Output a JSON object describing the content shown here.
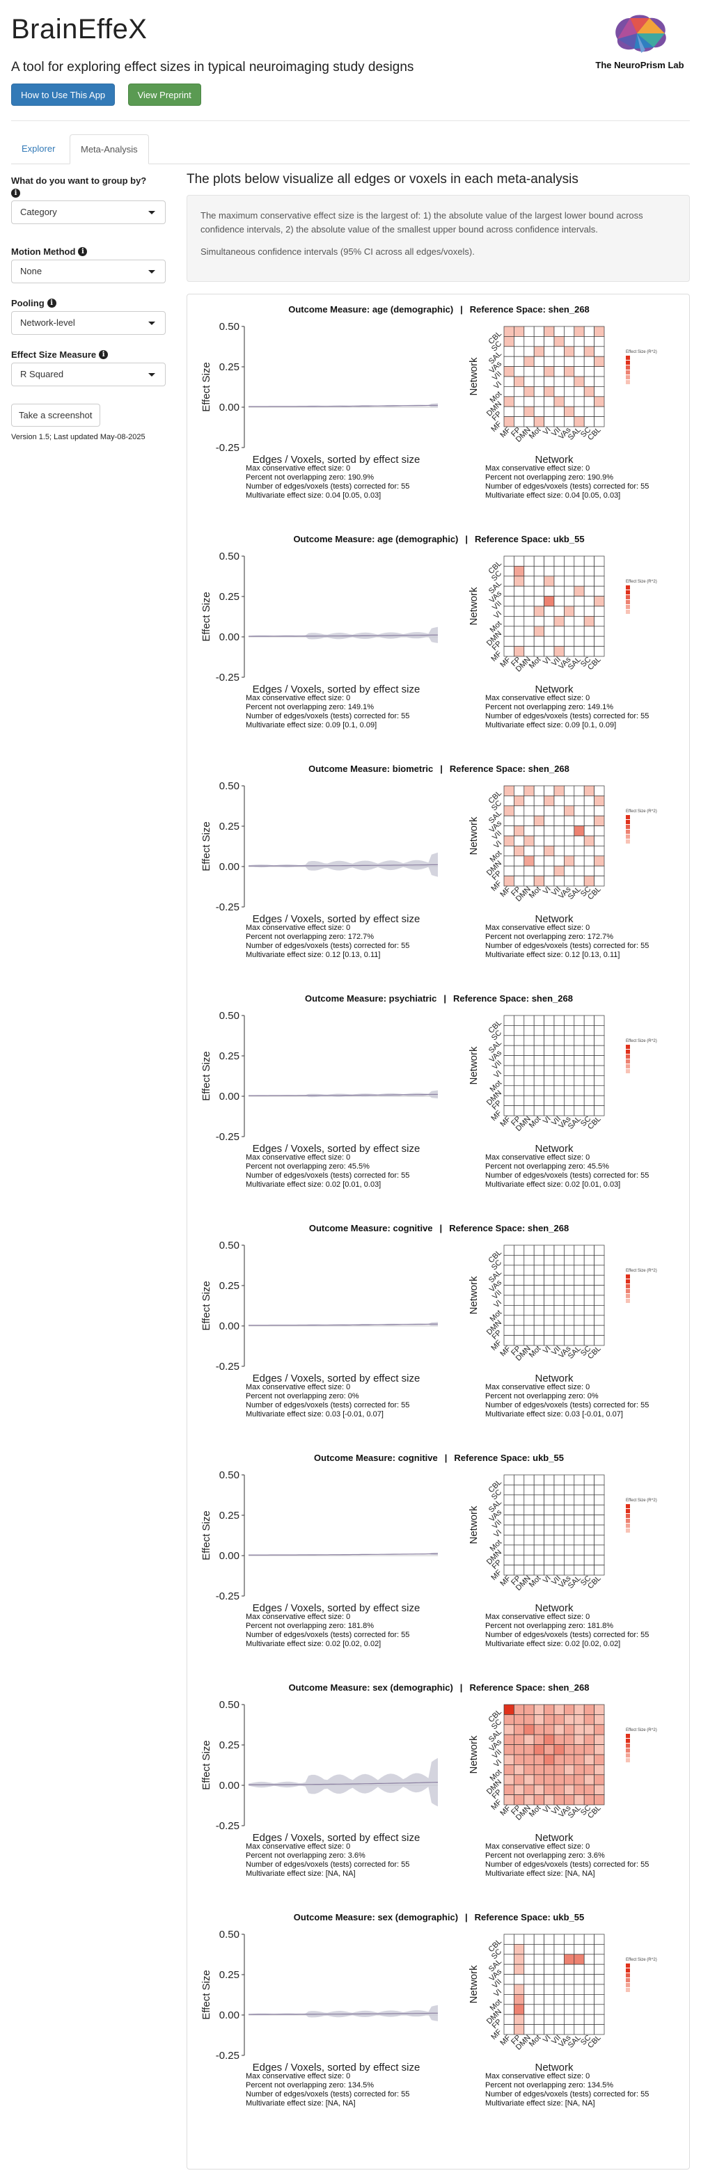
{
  "header": {
    "app_title": "BrainEffeX",
    "app_subtitle": "A tool for exploring effect sizes in typical neuroimaging study designs",
    "lab_name": "The NeuroPrism Lab"
  },
  "buttons": {
    "how_to": "How to Use This App",
    "preprint": "View Preprint",
    "screenshot": "Take a screenshot"
  },
  "tabs": {
    "explorer": "Explorer",
    "meta": "Meta-Analysis"
  },
  "sidebar": {
    "group_by_label": "What do you want to group by?",
    "group_by_value": "Category",
    "motion_label": "Motion Method",
    "motion_value": "None",
    "pooling_label": "Pooling",
    "pooling_value": "Network-level",
    "effect_label": "Effect Size Measure",
    "effect_value": "R Squared",
    "version": "Version 1.5; Last updated May-08-2025"
  },
  "main": {
    "heading": "The plots below visualize all edges or voxels in each meta-analysis",
    "desc1": "The maximum conservative effect size is the largest of: 1) the absolute value of the largest lower bound across confidence intervals, 2) the absolute value of the smallest upper bound across confidence intervals.",
    "desc2": "Simultaneous confidence intervals (95% CI across all edges/voxels)."
  },
  "plot_labels": {
    "outcome_prefix": "Outcome Measure:",
    "space_prefix": "Reference Space:",
    "separator": "|",
    "y_axis": "Effect Size",
    "x_axis": "Edges / Voxels, sorted by effect size",
    "mat_y": "Network",
    "mat_x": "Network",
    "legend_title": "Effect Size (R^2)",
    "y_ticks": [
      "0.50",
      "0.25",
      "0.00",
      "-0.25"
    ],
    "stat_max": "Max conservative effect size:",
    "stat_pct": "Percent not overlapping zero:",
    "stat_n": "Number of edges/voxels (tests) corrected for:",
    "stat_mv": "Multivariate effect size:"
  },
  "colors": {
    "heat_low": "#fde3d8",
    "heat_high": "#e0321c",
    "line": "#8a7fa0",
    "band": "#c9c9d6"
  },
  "chart_data": [
    {
      "type": "line",
      "outcome": "age (demographic)",
      "space": "shen_268",
      "max_cons": "0",
      "pct": "190.9%",
      "n": "55",
      "mv": "0.04 [0.05, 0.03]",
      "networks": [
        "MF",
        "FP",
        "DMN",
        "Mot",
        "VI",
        "VII",
        "VAs",
        "SAL",
        "SC",
        "CBL"
      ],
      "ylim": [
        -0.25,
        0.5
      ],
      "band": 0.005,
      "matrix": [
        [
          1,
          1,
          0,
          0,
          1,
          0,
          0,
          1,
          0,
          1
        ],
        [
          1,
          0,
          0,
          0,
          0,
          1,
          0,
          0,
          0,
          0
        ],
        [
          0,
          0,
          0,
          1,
          0,
          0,
          1,
          0,
          1,
          0
        ],
        [
          0,
          0,
          1,
          0,
          0,
          0,
          0,
          0,
          0,
          1
        ],
        [
          1,
          0,
          0,
          0,
          1,
          0,
          1,
          0,
          0,
          0
        ],
        [
          0,
          1,
          0,
          0,
          0,
          0,
          0,
          1,
          0,
          0
        ],
        [
          0,
          0,
          1,
          0,
          1,
          0,
          0,
          0,
          1,
          0
        ],
        [
          1,
          0,
          0,
          0,
          0,
          1,
          0,
          0,
          0,
          1
        ],
        [
          0,
          0,
          1,
          0,
          0,
          0,
          1,
          0,
          0,
          0
        ],
        [
          1,
          0,
          0,
          1,
          0,
          0,
          0,
          1,
          0,
          0
        ]
      ]
    },
    {
      "type": "line",
      "outcome": "age (demographic)",
      "space": "ukb_55",
      "max_cons": "0",
      "pct": "149.1%",
      "n": "55",
      "mv": "0.09 [0.1, 0.09]",
      "networks": [
        "MF",
        "FP",
        "DMN",
        "Mot",
        "VI",
        "VII",
        "VAs",
        "SAL",
        "SC",
        "CBL"
      ],
      "ylim": [
        -0.25,
        0.5
      ],
      "band": 0.02,
      "matrix": [
        [
          0,
          0,
          0,
          0,
          0,
          0,
          0,
          0,
          0,
          0
        ],
        [
          0,
          2,
          0,
          0,
          0,
          0,
          0,
          0,
          0,
          0
        ],
        [
          0,
          1,
          0,
          0,
          1,
          0,
          0,
          0,
          0,
          0
        ],
        [
          0,
          0,
          0,
          0,
          0,
          0,
          0,
          1,
          0,
          0
        ],
        [
          0,
          0,
          0,
          0,
          3,
          0,
          0,
          0,
          0,
          1
        ],
        [
          0,
          0,
          0,
          1,
          0,
          0,
          1,
          0,
          0,
          0
        ],
        [
          0,
          0,
          0,
          0,
          0,
          1,
          0,
          0,
          1,
          0
        ],
        [
          0,
          0,
          0,
          1,
          0,
          0,
          0,
          0,
          0,
          0
        ],
        [
          0,
          0,
          0,
          0,
          0,
          0,
          0,
          0,
          0,
          0
        ],
        [
          0,
          1,
          0,
          0,
          0,
          1,
          0,
          0,
          0,
          0
        ]
      ]
    },
    {
      "type": "line",
      "outcome": "biometric",
      "space": "shen_268",
      "max_cons": "0",
      "pct": "172.7%",
      "n": "55",
      "mv": "0.12 [0.13, 0.11]",
      "networks": [
        "MF",
        "FP",
        "DMN",
        "Mot",
        "VI",
        "VII",
        "VAs",
        "SAL",
        "SC",
        "CBL"
      ],
      "ylim": [
        -0.25,
        0.5
      ],
      "band": 0.03,
      "matrix": [
        [
          1,
          0,
          1,
          0,
          0,
          1,
          0,
          0,
          1,
          0
        ],
        [
          0,
          1,
          0,
          0,
          1,
          0,
          0,
          0,
          0,
          1
        ],
        [
          1,
          0,
          0,
          0,
          0,
          0,
          1,
          0,
          0,
          0
        ],
        [
          0,
          0,
          0,
          1,
          0,
          0,
          0,
          0,
          0,
          1
        ],
        [
          0,
          1,
          0,
          0,
          0,
          0,
          0,
          3,
          0,
          0
        ],
        [
          1,
          0,
          1,
          0,
          0,
          0,
          0,
          0,
          1,
          0
        ],
        [
          0,
          1,
          0,
          0,
          1,
          0,
          0,
          0,
          0,
          0
        ],
        [
          0,
          0,
          2,
          0,
          0,
          0,
          1,
          0,
          0,
          1
        ],
        [
          0,
          0,
          0,
          0,
          0,
          1,
          0,
          0,
          0,
          0
        ],
        [
          1,
          0,
          0,
          1,
          0,
          0,
          0,
          0,
          1,
          0
        ]
      ]
    },
    {
      "type": "line",
      "outcome": "psychiatric",
      "space": "shen_268",
      "max_cons": "0",
      "pct": "45.5%",
      "n": "55",
      "mv": "0.02 [0.01, 0.03]",
      "networks": [
        "MF",
        "FP",
        "DMN",
        "Mot",
        "VI",
        "VII",
        "VAs",
        "SAL",
        "SC",
        "CBL"
      ],
      "ylim": [
        -0.25,
        0.5
      ],
      "band": 0.01,
      "matrix": [
        [
          0,
          0,
          0,
          0,
          0,
          0,
          0,
          0,
          0,
          0
        ],
        [
          0,
          0,
          0,
          0,
          0,
          0,
          0,
          0,
          0,
          0
        ],
        [
          0,
          0,
          0,
          0,
          0,
          0,
          0,
          0,
          0,
          0
        ],
        [
          0,
          0,
          0,
          0,
          0,
          0,
          0,
          0,
          0,
          0
        ],
        [
          0,
          0,
          0,
          0,
          0,
          0,
          0,
          0,
          0,
          0
        ],
        [
          0,
          0,
          0,
          0,
          0,
          0,
          0,
          0,
          0,
          0
        ],
        [
          0,
          0,
          0,
          0,
          0,
          0,
          0,
          0,
          0,
          0
        ],
        [
          0,
          0,
          0,
          0,
          0,
          0,
          0,
          0,
          0,
          0
        ],
        [
          0,
          0,
          0,
          0,
          0,
          0,
          0,
          0,
          0,
          0
        ],
        [
          0,
          0,
          0,
          0,
          0,
          0,
          0,
          0,
          0,
          0
        ]
      ]
    },
    {
      "type": "line",
      "outcome": "cognitive",
      "space": "shen_268",
      "max_cons": "0",
      "pct": "0%",
      "n": "55",
      "mv": "0.03 [-0.01, 0.07]",
      "networks": [
        "MF",
        "FP",
        "DMN",
        "Mot",
        "VI",
        "VII",
        "VAs",
        "SAL",
        "SC",
        "CBL"
      ],
      "ylim": [
        -0.25,
        0.5
      ],
      "band": 0.005,
      "matrix": [
        [
          0,
          0,
          0,
          0,
          0,
          0,
          0,
          0,
          0,
          0
        ],
        [
          0,
          0,
          0,
          0,
          0,
          0,
          0,
          0,
          0,
          0
        ],
        [
          0,
          0,
          0,
          0,
          0,
          0,
          0,
          0,
          0,
          0
        ],
        [
          0,
          0,
          0,
          0,
          0,
          0,
          0,
          0,
          0,
          0
        ],
        [
          0,
          0,
          0,
          0,
          0,
          0,
          0,
          0,
          0,
          0
        ],
        [
          0,
          0,
          0,
          0,
          0,
          0,
          0,
          0,
          0,
          0
        ],
        [
          0,
          0,
          0,
          0,
          0,
          0,
          0,
          0,
          0,
          0
        ],
        [
          0,
          0,
          0,
          0,
          0,
          0,
          0,
          0,
          0,
          0
        ],
        [
          0,
          0,
          0,
          0,
          0,
          0,
          0,
          0,
          0,
          0
        ],
        [
          0,
          0,
          0,
          0,
          0,
          0,
          0,
          0,
          0,
          0
        ]
      ]
    },
    {
      "type": "line",
      "outcome": "cognitive",
      "space": "ukb_55",
      "max_cons": "0",
      "pct": "181.8%",
      "n": "55",
      "mv": "0.02 [0.02, 0.02]",
      "networks": [
        "MF",
        "FP",
        "DMN",
        "Mot",
        "VI",
        "VII",
        "VAs",
        "SAL",
        "SC",
        "CBL"
      ],
      "ylim": [
        -0.25,
        0.5
      ],
      "band": 0.003,
      "matrix": [
        [
          0,
          0,
          0,
          0,
          0,
          0,
          0,
          0,
          0,
          0
        ],
        [
          0,
          0,
          0,
          0,
          0,
          0,
          0,
          0,
          0,
          0
        ],
        [
          0,
          0,
          0,
          0,
          0,
          0,
          0,
          0,
          0,
          0
        ],
        [
          0,
          0,
          0,
          0,
          0,
          0,
          0,
          0,
          0,
          0
        ],
        [
          0,
          0,
          0,
          0,
          0,
          0,
          0,
          0,
          0,
          0
        ],
        [
          0,
          0,
          0,
          0,
          0,
          0,
          0,
          0,
          0,
          0
        ],
        [
          0,
          0,
          0,
          0,
          0,
          0,
          0,
          0,
          0,
          0
        ],
        [
          0,
          0,
          0,
          0,
          0,
          0,
          0,
          0,
          0,
          0
        ],
        [
          0,
          0,
          0,
          0,
          0,
          0,
          0,
          0,
          0,
          0
        ],
        [
          0,
          0,
          0,
          0,
          0,
          0,
          0,
          0,
          0,
          0
        ]
      ]
    },
    {
      "type": "line",
      "outcome": "sex (demographic)",
      "space": "shen_268",
      "max_cons": "0",
      "pct": "3.6%",
      "n": "55",
      "mv": " [NA, NA]",
      "networks": [
        "MF",
        "FP",
        "DMN",
        "Mot",
        "VI",
        "VII",
        "VAs",
        "SAL",
        "SC",
        "CBL"
      ],
      "ylim": [
        -0.25,
        0.5
      ],
      "band": 0.06,
      "matrix": [
        [
          5,
          2,
          2,
          1,
          2,
          1,
          2,
          1,
          2,
          1
        ],
        [
          2,
          2,
          2,
          1,
          2,
          2,
          1,
          1,
          2,
          1
        ],
        [
          1,
          2,
          3,
          2,
          2,
          1,
          2,
          1,
          1,
          2
        ],
        [
          2,
          2,
          1,
          2,
          3,
          2,
          2,
          1,
          2,
          1
        ],
        [
          2,
          2,
          2,
          3,
          2,
          3,
          2,
          2,
          2,
          1
        ],
        [
          1,
          2,
          2,
          2,
          3,
          2,
          2,
          2,
          1,
          2
        ],
        [
          2,
          1,
          2,
          2,
          2,
          2,
          1,
          2,
          2,
          1
        ],
        [
          1,
          2,
          1,
          2,
          2,
          2,
          2,
          2,
          1,
          2
        ],
        [
          2,
          1,
          2,
          1,
          2,
          2,
          1,
          2,
          2,
          1
        ],
        [
          1,
          2,
          1,
          2,
          1,
          2,
          2,
          1,
          2,
          2
        ]
      ]
    },
    {
      "type": "line",
      "outcome": "sex (demographic)",
      "space": "ukb_55",
      "max_cons": "0",
      "pct": "134.5%",
      "n": "55",
      "mv": " [NA, NA]",
      "networks": [
        "MF",
        "FP",
        "DMN",
        "Mot",
        "VI",
        "VII",
        "VAs",
        "SAL",
        "SC",
        "CBL"
      ],
      "ylim": [
        -0.25,
        0.5
      ],
      "band": 0.02,
      "matrix": [
        [
          0,
          0,
          0,
          0,
          0,
          0,
          0,
          0,
          0,
          0
        ],
        [
          0,
          1,
          0,
          0,
          0,
          0,
          0,
          0,
          0,
          0
        ],
        [
          0,
          1,
          0,
          0,
          0,
          0,
          3,
          3,
          0,
          0
        ],
        [
          0,
          1,
          0,
          0,
          0,
          0,
          0,
          0,
          0,
          0
        ],
        [
          0,
          0,
          0,
          0,
          0,
          0,
          0,
          0,
          0,
          0
        ],
        [
          0,
          1,
          0,
          0,
          0,
          0,
          0,
          0,
          0,
          0
        ],
        [
          0,
          2,
          0,
          0,
          0,
          0,
          0,
          0,
          0,
          0
        ],
        [
          0,
          3,
          0,
          0,
          0,
          0,
          0,
          0,
          0,
          0
        ],
        [
          0,
          1,
          0,
          0,
          0,
          0,
          0,
          0,
          0,
          0
        ],
        [
          0,
          1,
          0,
          0,
          0,
          0,
          0,
          0,
          0,
          0
        ]
      ]
    }
  ]
}
